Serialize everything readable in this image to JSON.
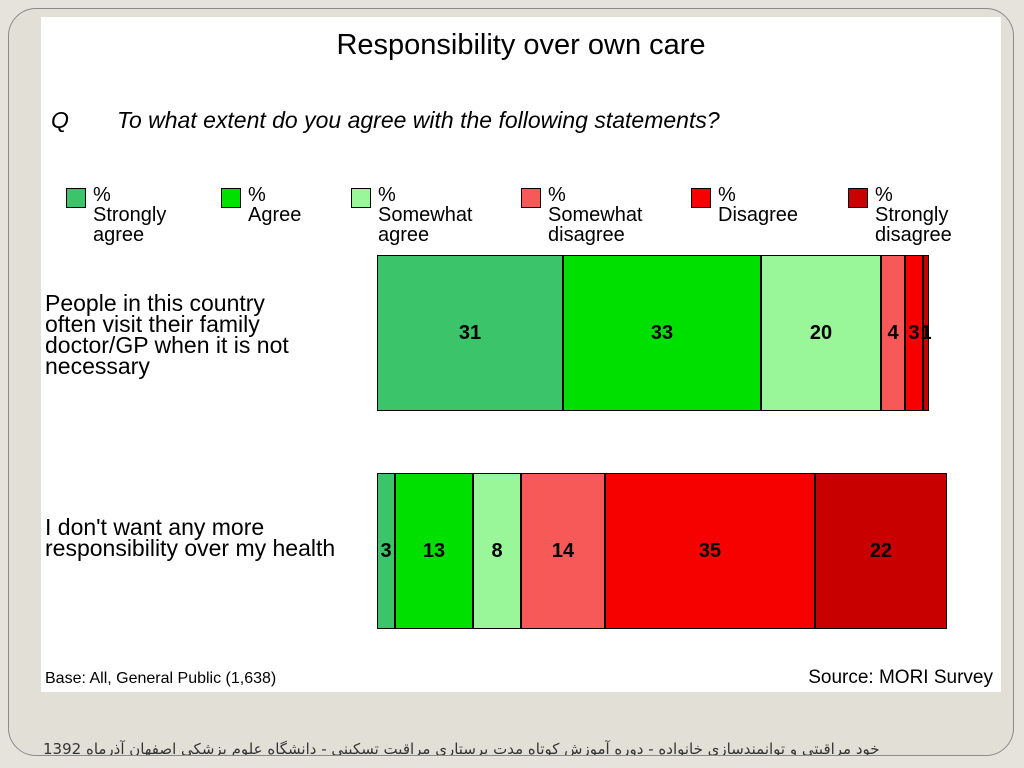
{
  "chart_data": {
    "type": "bar",
    "orientation": "horizontal",
    "stacked": true,
    "title": "Responsibility over own care",
    "question_prefix": "Q",
    "question": "To what extent do you agree with the following statements?",
    "categories": [
      "People in this country\noften visit their family\ndoctor/GP when it is not\nnecessary",
      "I don't want any more\nresponsibility over my health"
    ],
    "series": [
      {
        "name": "% Strongly\nagree",
        "color": "#3cc46a",
        "values": [
          31,
          3
        ]
      },
      {
        "name": "% Agree",
        "color": "#00e000",
        "values": [
          33,
          13
        ]
      },
      {
        "name": "% Somewhat\nagree",
        "color": "#99f799",
        "values": [
          20,
          8
        ]
      },
      {
        "name": "% Somewhat\ndisagree",
        "color": "#f75959",
        "values": [
          4,
          14
        ]
      },
      {
        "name": "% Disagree",
        "color": "#f70000",
        "values": [
          3,
          35
        ]
      },
      {
        "name": "% Strongly\ndisagree",
        "color": "#c80000",
        "values": [
          1,
          22
        ]
      }
    ],
    "shown_labels": [
      [
        "31",
        "33",
        "20",
        "4",
        "3",
        "1"
      ],
      [
        "3",
        "13",
        "8",
        "14",
        "35",
        "22"
      ]
    ],
    "xlim": [
      0,
      96
    ],
    "legend_position": "top",
    "base_note": "Base: All, General Public (1,638)",
    "source": "Source: MORI Survey"
  },
  "footer_text": "خود مراقبتی و توانمندسازی خانواده - دوره آموزش کوتاه مدت پرستاری مراقبت تسکینی - دانشگاه علوم پزشکی اصفهان آذرماه 1392"
}
